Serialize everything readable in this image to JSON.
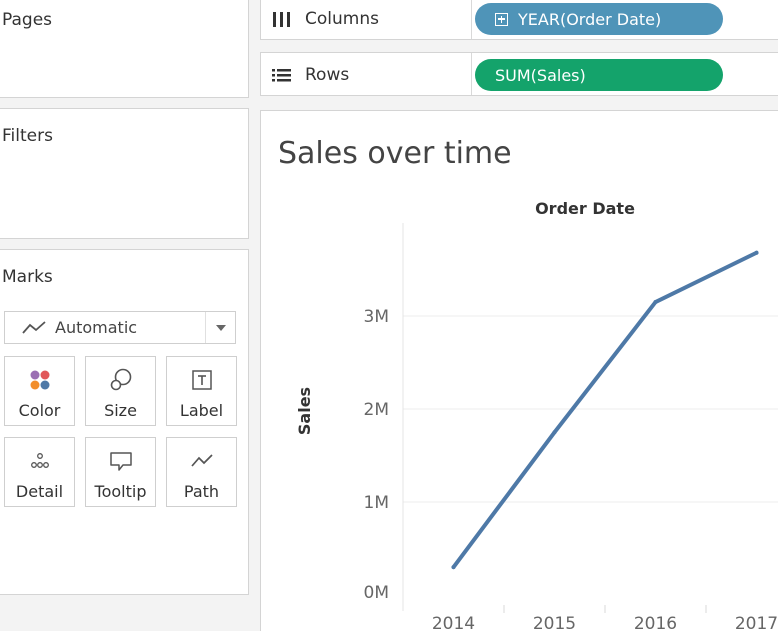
{
  "cards": {
    "pages": {
      "title": "Pages"
    },
    "filters": {
      "title": "Filters"
    },
    "marks": {
      "title": "Marks",
      "mark_type": {
        "label": "Automatic",
        "icon": "line-chart-icon"
      },
      "buttons": [
        {
          "label": "Color",
          "icon": "color-dots-icon"
        },
        {
          "label": "Size",
          "icon": "size-icon"
        },
        {
          "label": "Label",
          "icon": "label-text-icon"
        },
        {
          "label": "Detail",
          "icon": "detail-dots-icon"
        },
        {
          "label": "Tooltip",
          "icon": "tooltip-icon"
        },
        {
          "label": "Path",
          "icon": "path-icon"
        }
      ]
    }
  },
  "shelves": {
    "columns": {
      "label": "Columns",
      "pill": "YEAR(Order Date)",
      "pill_color": "#4f94b8",
      "icon": "columns-icon"
    },
    "rows": {
      "label": "Rows",
      "pill": "SUM(Sales)",
      "pill_color": "#14a36b",
      "icon": "rows-icon"
    }
  },
  "view": {
    "title": "Sales over time"
  },
  "chart_data": {
    "type": "line",
    "title": "Sales over time",
    "x_header": "Order Date",
    "ylabel": "Sales",
    "x": [
      "2014",
      "2015",
      "2016",
      "2017"
    ],
    "series": [
      {
        "values": [
          300000,
          1750000,
          3150000,
          3680000
        ],
        "color": "#4e79a7"
      }
    ],
    "y_ticks": [
      {
        "value": 0,
        "label": "0M"
      },
      {
        "value": 1000000,
        "label": "1M"
      },
      {
        "value": 2000000,
        "label": "2M"
      },
      {
        "value": 3000000,
        "label": "3M"
      }
    ],
    "ylim": [
      -150000,
      4000000
    ],
    "grid": true
  }
}
